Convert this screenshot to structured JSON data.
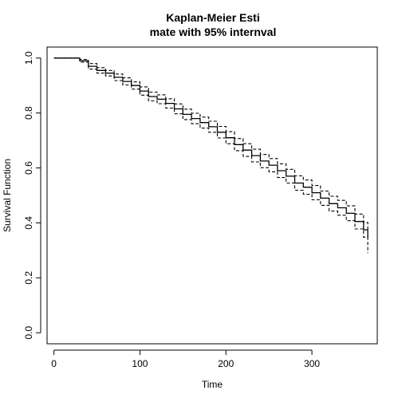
{
  "chart_data": {
    "type": "line",
    "title_lines": [
      "Kaplan-Meier Esti",
      "mate with 95% internval"
    ],
    "xlabel": "Time",
    "ylabel": "Survival Function",
    "xlim": [
      -8,
      376
    ],
    "ylim": [
      -0.04,
      1.04
    ],
    "x_ticks": [
      0,
      100,
      200,
      300
    ],
    "y_ticks": [
      0.0,
      0.2,
      0.4,
      0.6,
      0.8,
      1.0
    ],
    "x_tick_labels": [
      "0",
      "100",
      "200",
      "300"
    ],
    "y_tick_labels": [
      "0.0",
      "0.2",
      "0.4",
      "0.6",
      "0.8",
      "1.0"
    ],
    "grid": false,
    "legend": "none",
    "series": [
      {
        "role": "estimate",
        "line_style": "solid",
        "points": [
          [
            0,
            1.0
          ],
          [
            20,
            1.0
          ],
          [
            30,
            0.99
          ],
          [
            40,
            0.97
          ],
          [
            50,
            0.955
          ],
          [
            60,
            0.945
          ],
          [
            70,
            0.93
          ],
          [
            80,
            0.915
          ],
          [
            90,
            0.9
          ],
          [
            100,
            0.88
          ],
          [
            110,
            0.86
          ],
          [
            120,
            0.85
          ],
          [
            130,
            0.835
          ],
          [
            140,
            0.815
          ],
          [
            150,
            0.795
          ],
          [
            160,
            0.78
          ],
          [
            170,
            0.765
          ],
          [
            180,
            0.75
          ],
          [
            190,
            0.73
          ],
          [
            200,
            0.71
          ],
          [
            210,
            0.685
          ],
          [
            220,
            0.665
          ],
          [
            230,
            0.645
          ],
          [
            240,
            0.625
          ],
          [
            250,
            0.61
          ],
          [
            260,
            0.59
          ],
          [
            270,
            0.57
          ],
          [
            280,
            0.545
          ],
          [
            290,
            0.53
          ],
          [
            300,
            0.51
          ],
          [
            310,
            0.49
          ],
          [
            320,
            0.47
          ],
          [
            330,
            0.455
          ],
          [
            340,
            0.435
          ],
          [
            350,
            0.405
          ],
          [
            360,
            0.375
          ],
          [
            365,
            0.345
          ]
        ]
      },
      {
        "role": "upper-95",
        "line_style": "dashed",
        "points": [
          [
            0,
            1.0
          ],
          [
            20,
            1.0
          ],
          [
            30,
            0.995
          ],
          [
            40,
            0.98
          ],
          [
            50,
            0.965
          ],
          [
            60,
            0.955
          ],
          [
            70,
            0.942
          ],
          [
            80,
            0.928
          ],
          [
            90,
            0.913
          ],
          [
            100,
            0.895
          ],
          [
            110,
            0.876
          ],
          [
            120,
            0.866
          ],
          [
            130,
            0.852
          ],
          [
            140,
            0.833
          ],
          [
            150,
            0.814
          ],
          [
            160,
            0.799
          ],
          [
            170,
            0.785
          ],
          [
            180,
            0.77
          ],
          [
            190,
            0.751
          ],
          [
            200,
            0.732
          ],
          [
            210,
            0.707
          ],
          [
            220,
            0.688
          ],
          [
            230,
            0.668
          ],
          [
            240,
            0.649
          ],
          [
            250,
            0.634
          ],
          [
            260,
            0.615
          ],
          [
            270,
            0.595
          ],
          [
            280,
            0.571
          ],
          [
            290,
            0.556
          ],
          [
            300,
            0.536
          ],
          [
            310,
            0.516
          ],
          [
            320,
            0.497
          ],
          [
            330,
            0.482
          ],
          [
            340,
            0.462
          ],
          [
            350,
            0.432
          ],
          [
            360,
            0.402
          ],
          [
            365,
            0.372
          ]
        ]
      },
      {
        "role": "lower-95",
        "line_style": "dashed",
        "points": [
          [
            0,
            1.0
          ],
          [
            20,
            1.0
          ],
          [
            30,
            0.985
          ],
          [
            40,
            0.96
          ],
          [
            50,
            0.945
          ],
          [
            60,
            0.935
          ],
          [
            70,
            0.918
          ],
          [
            80,
            0.902
          ],
          [
            90,
            0.887
          ],
          [
            100,
            0.865
          ],
          [
            110,
            0.844
          ],
          [
            120,
            0.834
          ],
          [
            130,
            0.818
          ],
          [
            140,
            0.797
          ],
          [
            150,
            0.776
          ],
          [
            160,
            0.761
          ],
          [
            170,
            0.745
          ],
          [
            180,
            0.73
          ],
          [
            190,
            0.709
          ],
          [
            200,
            0.688
          ],
          [
            210,
            0.663
          ],
          [
            220,
            0.642
          ],
          [
            230,
            0.622
          ],
          [
            240,
            0.601
          ],
          [
            250,
            0.586
          ],
          [
            260,
            0.565
          ],
          [
            270,
            0.545
          ],
          [
            280,
            0.519
          ],
          [
            290,
            0.504
          ],
          [
            300,
            0.484
          ],
          [
            310,
            0.464
          ],
          [
            320,
            0.443
          ],
          [
            330,
            0.428
          ],
          [
            340,
            0.408
          ],
          [
            350,
            0.378
          ],
          [
            360,
            0.348
          ],
          [
            365,
            0.29
          ]
        ]
      }
    ]
  }
}
